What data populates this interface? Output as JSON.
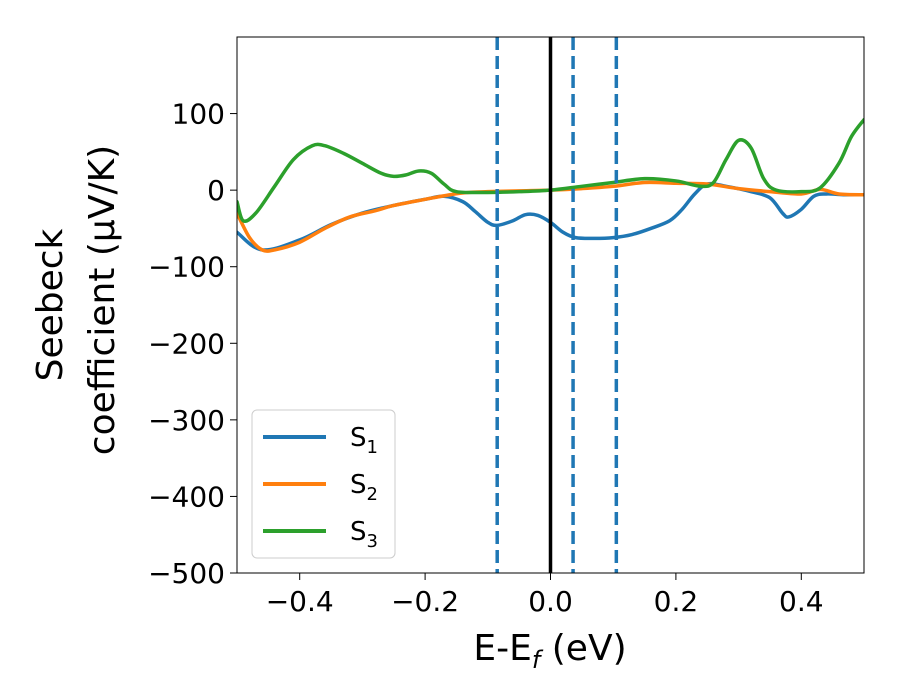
{
  "chart_data": {
    "type": "line",
    "xlabel": {
      "main": "E-E",
      "sub": "f",
      "suffix": " (eV)"
    },
    "ylabel": {
      "line1": "Seebeck",
      "line2": "coefficient  (μV/K)"
    },
    "xlim": [
      -0.5,
      0.5
    ],
    "ylim": [
      -500,
      200
    ],
    "xticks": [
      {
        "value": -0.4,
        "label": "−0.4"
      },
      {
        "value": -0.2,
        "label": "−0.2"
      },
      {
        "value": 0.0,
        "label": "0.0"
      },
      {
        "value": 0.2,
        "label": "0.2"
      },
      {
        "value": 0.4,
        "label": "0.4"
      }
    ],
    "yticks": [
      {
        "value": 100,
        "label": "100"
      },
      {
        "value": 0,
        "label": "0"
      },
      {
        "value": -100,
        "label": "−100"
      },
      {
        "value": -200,
        "label": "−200"
      },
      {
        "value": -300,
        "label": "−300"
      },
      {
        "value": -400,
        "label": "−400"
      },
      {
        "value": -500,
        "label": "−500"
      }
    ],
    "grid": false,
    "legend_position": "lower-left",
    "vertical_lines": [
      {
        "x": -0.085,
        "style": "dashed",
        "color": "#1f77b4"
      },
      {
        "x": 0.0,
        "style": "solid",
        "color": "#000000"
      },
      {
        "x": 0.036,
        "style": "dashed",
        "color": "#1f77b4"
      },
      {
        "x": 0.105,
        "style": "dashed",
        "color": "#1f77b4"
      }
    ],
    "series": [
      {
        "name": "S",
        "sub": "1",
        "color": "#1f77b4",
        "points": [
          [
            -0.5,
            -55
          ],
          [
            -0.46,
            -78
          ],
          [
            -0.4,
            -65
          ],
          [
            -0.35,
            -45
          ],
          [
            -0.3,
            -30
          ],
          [
            -0.25,
            -20
          ],
          [
            -0.2,
            -12
          ],
          [
            -0.17,
            -8
          ],
          [
            -0.14,
            -15
          ],
          [
            -0.12,
            -28
          ],
          [
            -0.1,
            -42
          ],
          [
            -0.085,
            -46
          ],
          [
            -0.06,
            -40
          ],
          [
            -0.04,
            -32
          ],
          [
            -0.02,
            -33
          ],
          [
            0.0,
            -42
          ],
          [
            0.02,
            -55
          ],
          [
            0.04,
            -62
          ],
          [
            0.07,
            -63
          ],
          [
            0.1,
            -62
          ],
          [
            0.13,
            -58
          ],
          [
            0.16,
            -50
          ],
          [
            0.19,
            -40
          ],
          [
            0.21,
            -25
          ],
          [
            0.23,
            -5
          ],
          [
            0.25,
            8
          ],
          [
            0.28,
            5
          ],
          [
            0.32,
            -2
          ],
          [
            0.35,
            -10
          ],
          [
            0.37,
            -30
          ],
          [
            0.38,
            -35
          ],
          [
            0.4,
            -25
          ],
          [
            0.42,
            -8
          ],
          [
            0.44,
            -5
          ],
          [
            0.47,
            -6
          ],
          [
            0.5,
            -6
          ]
        ]
      },
      {
        "name": "S",
        "sub": "2",
        "color": "#ff7f0e",
        "points": [
          [
            -0.5,
            -30
          ],
          [
            -0.48,
            -62
          ],
          [
            -0.46,
            -78
          ],
          [
            -0.44,
            -78
          ],
          [
            -0.4,
            -68
          ],
          [
            -0.36,
            -50
          ],
          [
            -0.32,
            -35
          ],
          [
            -0.28,
            -27
          ],
          [
            -0.25,
            -20
          ],
          [
            -0.2,
            -12
          ],
          [
            -0.16,
            -6
          ],
          [
            -0.13,
            -3
          ],
          [
            -0.1,
            -2
          ],
          [
            -0.05,
            -1
          ],
          [
            0.0,
            0
          ],
          [
            0.05,
            2
          ],
          [
            0.1,
            5
          ],
          [
            0.15,
            10
          ],
          [
            0.2,
            9
          ],
          [
            0.25,
            8
          ],
          [
            0.3,
            2
          ],
          [
            0.35,
            -2
          ],
          [
            0.4,
            -5
          ],
          [
            0.43,
            1
          ],
          [
            0.46,
            -5
          ],
          [
            0.5,
            -6
          ]
        ]
      },
      {
        "name": "S",
        "sub": "3",
        "color": "#2ca02c",
        "points": [
          [
            -0.5,
            -15
          ],
          [
            -0.49,
            -40
          ],
          [
            -0.47,
            -30
          ],
          [
            -0.44,
            5
          ],
          [
            -0.41,
            40
          ],
          [
            -0.38,
            58
          ],
          [
            -0.36,
            58
          ],
          [
            -0.33,
            48
          ],
          [
            -0.3,
            35
          ],
          [
            -0.27,
            22
          ],
          [
            -0.25,
            18
          ],
          [
            -0.23,
            20
          ],
          [
            -0.21,
            25
          ],
          [
            -0.19,
            22
          ],
          [
            -0.17,
            8
          ],
          [
            -0.15,
            -2
          ],
          [
            -0.1,
            -3
          ],
          [
            -0.05,
            -2
          ],
          [
            0.0,
            0
          ],
          [
            0.05,
            5
          ],
          [
            0.1,
            10
          ],
          [
            0.15,
            15
          ],
          [
            0.2,
            12
          ],
          [
            0.24,
            5
          ],
          [
            0.26,
            10
          ],
          [
            0.28,
            40
          ],
          [
            0.3,
            65
          ],
          [
            0.32,
            55
          ],
          [
            0.34,
            15
          ],
          [
            0.36,
            0
          ],
          [
            0.4,
            -2
          ],
          [
            0.43,
            3
          ],
          [
            0.46,
            35
          ],
          [
            0.48,
            70
          ],
          [
            0.5,
            92
          ]
        ]
      }
    ]
  }
}
